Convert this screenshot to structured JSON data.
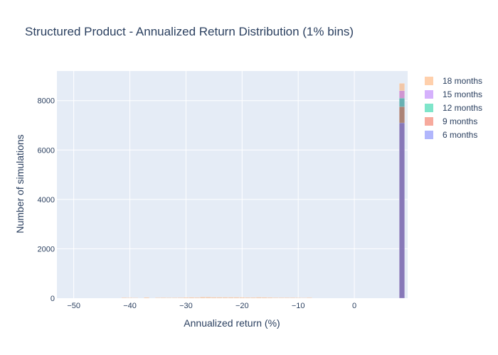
{
  "chart_data": {
    "type": "bar",
    "title": "Structured Product - Annualized Return Distribution (1% bins)",
    "xlabel": "Annualized return (%)",
    "ylabel": "Number of simulations",
    "xlim": [
      -53,
      9.5
    ],
    "ylim": [
      0,
      9200
    ],
    "x_ticks": [
      -50,
      -40,
      -30,
      -20,
      -10,
      0
    ],
    "y_ticks": [
      0,
      2000,
      4000,
      6000,
      8000
    ],
    "bin_width": 1,
    "barmode": "overlay",
    "grid": true,
    "legend_position": "right",
    "background": "#e5ecf6",
    "series": [
      {
        "name": "18 months",
        "color": "#ffa15a",
        "x": [
          -41,
          -40,
          -39,
          -37,
          -35,
          -34,
          -33,
          -32,
          -31,
          -30,
          -29,
          -28,
          -27,
          -26,
          -25,
          -24,
          -23,
          -22,
          -21,
          -20,
          -19,
          -18,
          -17,
          -16,
          -15,
          -14,
          -13,
          -12,
          -11,
          -10,
          -9,
          -8,
          8.5
        ],
        "values": [
          25,
          20,
          15,
          30,
          20,
          25,
          20,
          20,
          25,
          30,
          35,
          30,
          45,
          45,
          40,
          40,
          40,
          40,
          40,
          35,
          30,
          30,
          40,
          35,
          30,
          25,
          25,
          25,
          25,
          20,
          15,
          25,
          8700
        ]
      },
      {
        "name": "15 months",
        "color": "#ab63fa",
        "x": [
          8.5
        ],
        "values": [
          8400
        ]
      },
      {
        "name": "12 months",
        "color": "#00cc96",
        "x": [
          8.5
        ],
        "values": [
          8100
        ]
      },
      {
        "name": "9 months",
        "color": "#ef553b",
        "x": [
          8.5
        ],
        "values": [
          7750
        ]
      },
      {
        "name": "6 months",
        "color": "#636efa",
        "x": [
          8.5
        ],
        "values": [
          7100
        ]
      }
    ]
  }
}
